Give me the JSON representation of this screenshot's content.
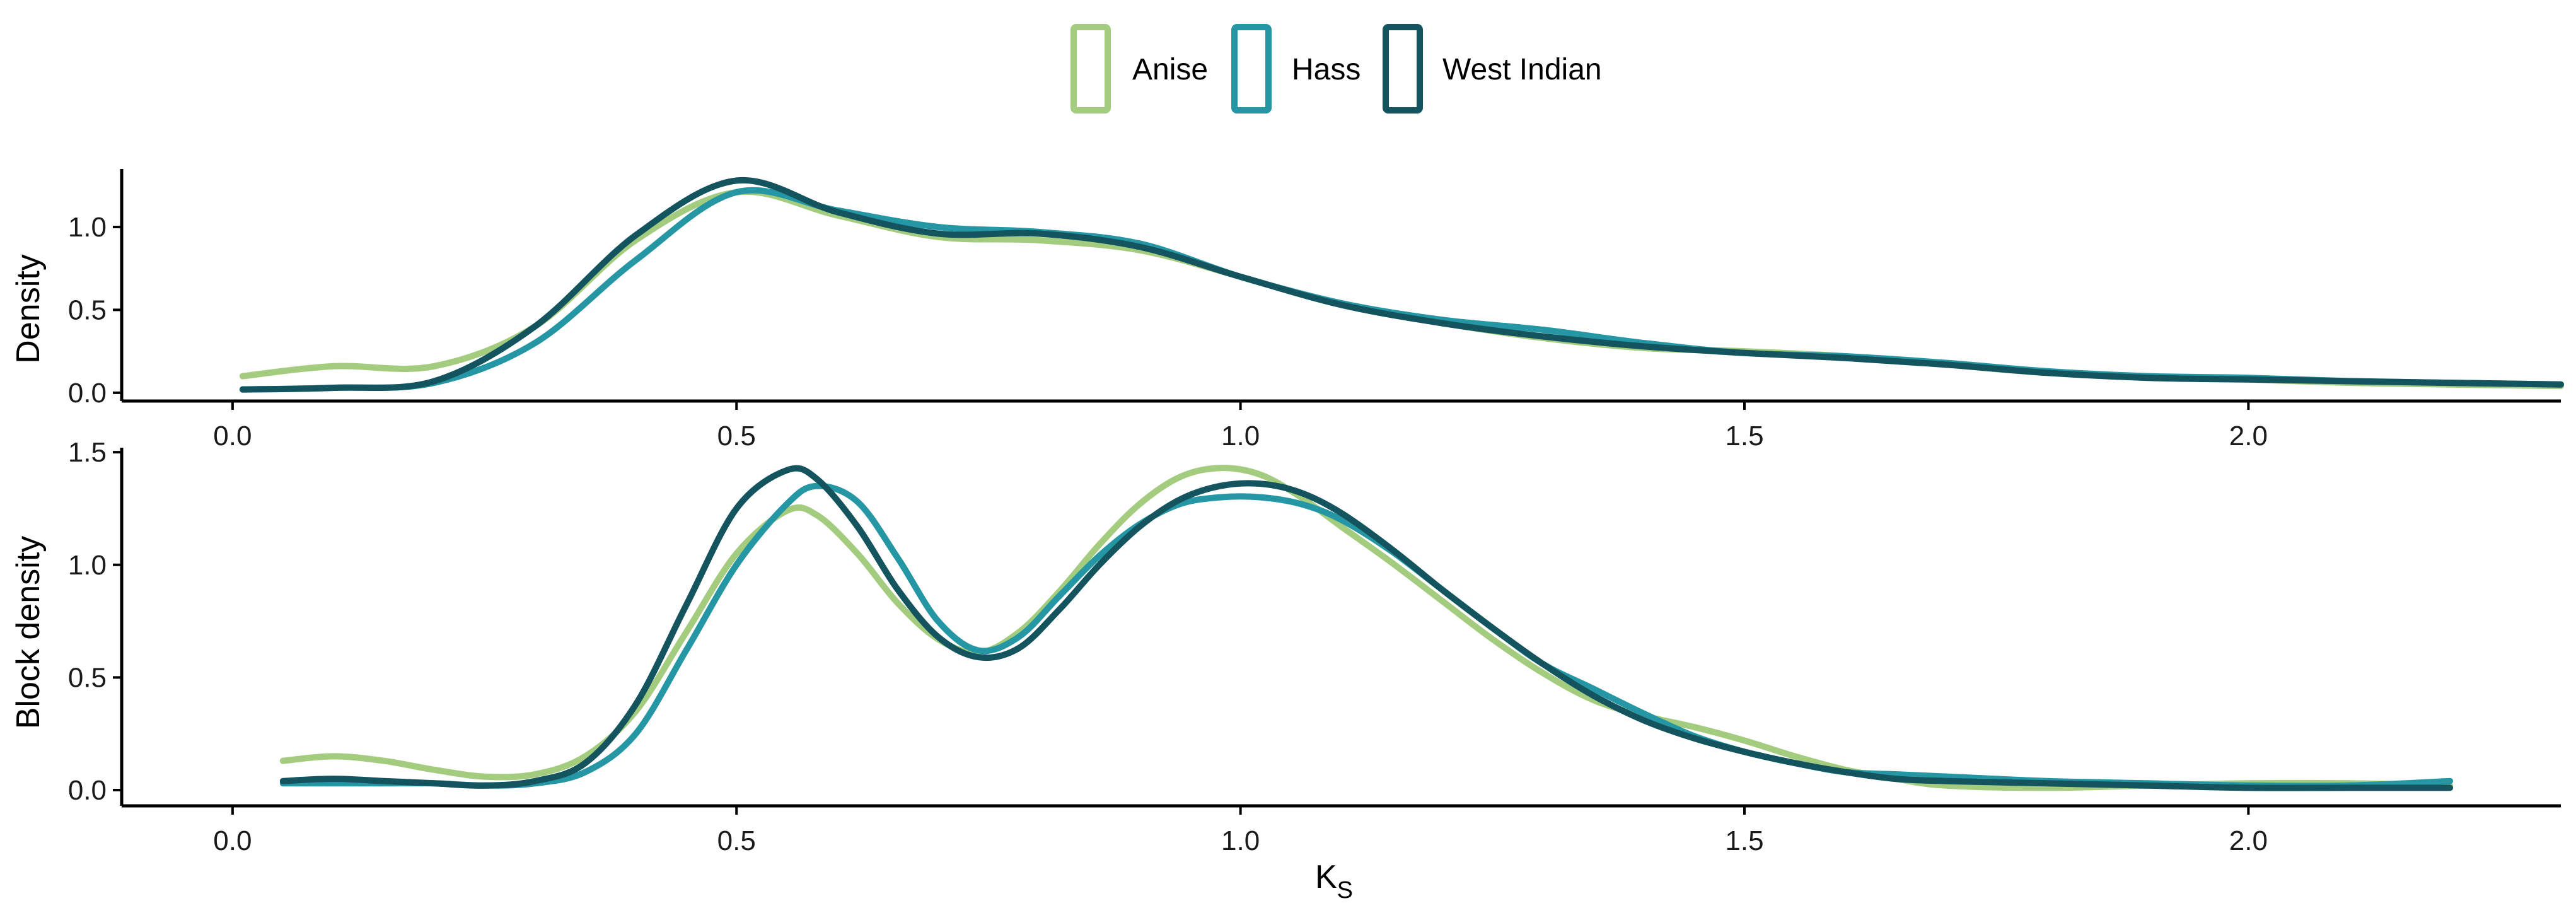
{
  "legend": [
    {
      "name": "Anise",
      "color": "#a3cc7e"
    },
    {
      "name": "Hass",
      "color": "#2596a3"
    },
    {
      "name": "West Indian",
      "color": "#14545e"
    }
  ],
  "chart_data": [
    {
      "type": "line",
      "panel": "top",
      "ylabel": "Density",
      "xlim": [
        -0.11,
        2.31
      ],
      "ylim": [
        -0.05,
        1.35
      ],
      "xticks": [
        "0.0",
        "0.5",
        "1.0",
        "1.5",
        "2.0"
      ],
      "yticks": [
        "0.0",
        "0.5",
        "1.0"
      ],
      "legend_position": "top",
      "grid": false,
      "series": [
        {
          "name": "Anise",
          "color": "#a3cc7e",
          "x": [
            0.01,
            0.1,
            0.2,
            0.3,
            0.4,
            0.5,
            0.6,
            0.7,
            0.8,
            0.9,
            1.0,
            1.1,
            1.2,
            1.3,
            1.4,
            1.5,
            1.6,
            1.7,
            1.8,
            1.9,
            2.0,
            2.1,
            2.2,
            2.31
          ],
          "y": [
            0.1,
            0.16,
            0.16,
            0.4,
            0.92,
            1.21,
            1.07,
            0.94,
            0.92,
            0.86,
            0.7,
            0.53,
            0.42,
            0.33,
            0.27,
            0.25,
            0.22,
            0.17,
            0.12,
            0.1,
            0.08,
            0.06,
            0.05,
            0.04
          ]
        },
        {
          "name": "Hass",
          "color": "#2596a3",
          "x": [
            0.01,
            0.1,
            0.2,
            0.3,
            0.4,
            0.5,
            0.6,
            0.7,
            0.8,
            0.9,
            1.0,
            1.1,
            1.2,
            1.3,
            1.4,
            1.5,
            1.6,
            1.7,
            1.8,
            1.9,
            2.0,
            2.1,
            2.2,
            2.31
          ],
          "y": [
            0.02,
            0.03,
            0.06,
            0.3,
            0.8,
            1.21,
            1.1,
            1.0,
            0.97,
            0.9,
            0.7,
            0.54,
            0.44,
            0.38,
            0.3,
            0.24,
            0.22,
            0.18,
            0.13,
            0.1,
            0.09,
            0.07,
            0.06,
            0.05
          ]
        },
        {
          "name": "West Indian",
          "color": "#14545e",
          "x": [
            0.01,
            0.1,
            0.2,
            0.3,
            0.4,
            0.5,
            0.6,
            0.7,
            0.8,
            0.9,
            1.0,
            1.1,
            1.2,
            1.3,
            1.4,
            1.5,
            1.6,
            1.7,
            1.8,
            1.9,
            2.0,
            2.1,
            2.2,
            2.31
          ],
          "y": [
            0.02,
            0.03,
            0.07,
            0.4,
            0.95,
            1.28,
            1.09,
            0.96,
            0.96,
            0.88,
            0.7,
            0.53,
            0.42,
            0.34,
            0.28,
            0.24,
            0.21,
            0.17,
            0.12,
            0.09,
            0.08,
            0.07,
            0.06,
            0.05
          ]
        }
      ]
    },
    {
      "type": "line",
      "panel": "bottom",
      "xlabel": "K",
      "xlabel_sub": "S",
      "ylabel": "Block density",
      "xlim": [
        -0.11,
        2.31
      ],
      "ylim": [
        -0.07,
        1.52
      ],
      "xticks": [
        "0.0",
        "0.5",
        "1.0",
        "1.5",
        "2.0"
      ],
      "yticks": [
        "0.0",
        "0.5",
        "1.0",
        "1.5"
      ],
      "grid": false,
      "series": [
        {
          "name": "Anise",
          "color": "#a3cc7e",
          "x": [
            0.05,
            0.1,
            0.15,
            0.2,
            0.25,
            0.3,
            0.35,
            0.4,
            0.45,
            0.5,
            0.55,
            0.58,
            0.62,
            0.66,
            0.7,
            0.74,
            0.78,
            0.82,
            0.86,
            0.9,
            0.94,
            0.98,
            1.02,
            1.06,
            1.1,
            1.15,
            1.2,
            1.25,
            1.3,
            1.35,
            1.4,
            1.45,
            1.5,
            1.55,
            1.6,
            1.65,
            1.7,
            1.8,
            1.9,
            2.0,
            2.1,
            2.2
          ],
          "y": [
            0.13,
            0.15,
            0.13,
            0.09,
            0.06,
            0.07,
            0.15,
            0.35,
            0.7,
            1.05,
            1.24,
            1.22,
            1.05,
            0.83,
            0.67,
            0.61,
            0.7,
            0.88,
            1.09,
            1.27,
            1.39,
            1.43,
            1.4,
            1.3,
            1.17,
            1.01,
            0.84,
            0.67,
            0.52,
            0.4,
            0.33,
            0.28,
            0.22,
            0.15,
            0.09,
            0.05,
            0.02,
            0.01,
            0.02,
            0.03,
            0.03,
            0.02
          ]
        },
        {
          "name": "Hass",
          "color": "#2596a3",
          "x": [
            0.05,
            0.1,
            0.15,
            0.2,
            0.25,
            0.3,
            0.35,
            0.4,
            0.45,
            0.5,
            0.55,
            0.58,
            0.62,
            0.66,
            0.7,
            0.74,
            0.78,
            0.82,
            0.86,
            0.9,
            0.94,
            0.98,
            1.02,
            1.06,
            1.1,
            1.15,
            1.2,
            1.25,
            1.3,
            1.35,
            1.4,
            1.45,
            1.5,
            1.55,
            1.6,
            1.65,
            1.7,
            1.8,
            1.9,
            2.0,
            2.1,
            2.2
          ],
          "y": [
            0.03,
            0.03,
            0.03,
            0.03,
            0.02,
            0.03,
            0.08,
            0.25,
            0.62,
            1.0,
            1.27,
            1.35,
            1.28,
            1.03,
            0.75,
            0.62,
            0.68,
            0.86,
            1.04,
            1.18,
            1.27,
            1.3,
            1.3,
            1.27,
            1.2,
            1.06,
            0.89,
            0.72,
            0.56,
            0.45,
            0.34,
            0.24,
            0.17,
            0.12,
            0.08,
            0.07,
            0.06,
            0.04,
            0.03,
            0.02,
            0.02,
            0.04
          ]
        },
        {
          "name": "West Indian",
          "color": "#14545e",
          "x": [
            0.05,
            0.1,
            0.15,
            0.2,
            0.25,
            0.3,
            0.35,
            0.4,
            0.45,
            0.5,
            0.55,
            0.58,
            0.62,
            0.66,
            0.7,
            0.74,
            0.78,
            0.82,
            0.86,
            0.9,
            0.94,
            0.98,
            1.02,
            1.06,
            1.1,
            1.15,
            1.2,
            1.25,
            1.3,
            1.35,
            1.4,
            1.45,
            1.5,
            1.55,
            1.6,
            1.65,
            1.7,
            1.8,
            1.9,
            2.0,
            2.1,
            2.2
          ],
          "y": [
            0.04,
            0.05,
            0.04,
            0.03,
            0.02,
            0.04,
            0.12,
            0.38,
            0.82,
            1.25,
            1.42,
            1.38,
            1.17,
            0.89,
            0.68,
            0.59,
            0.63,
            0.8,
            1.0,
            1.17,
            1.29,
            1.35,
            1.36,
            1.32,
            1.23,
            1.07,
            0.89,
            0.72,
            0.56,
            0.42,
            0.31,
            0.23,
            0.17,
            0.12,
            0.08,
            0.05,
            0.04,
            0.03,
            0.02,
            0.01,
            0.01,
            0.01
          ]
        }
      ]
    }
  ]
}
